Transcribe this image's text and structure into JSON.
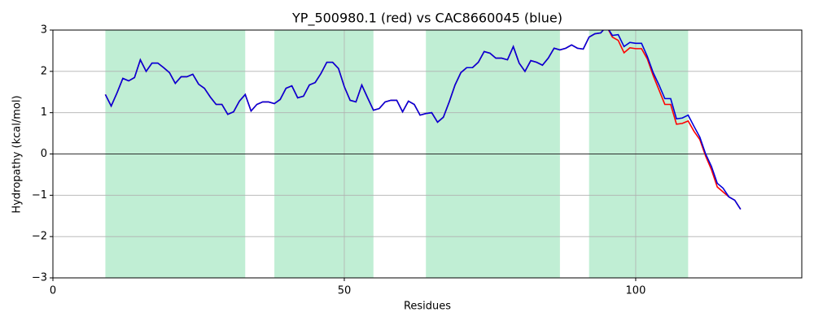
{
  "chart_data": {
    "type": "line",
    "title": "YP_500980.1 (red) vs CAC8660045 (blue)",
    "x_label": "Residues",
    "y_label": "Hydropathy (kcal/mol)",
    "xlim": [
      0,
      128.5
    ],
    "ylim": [
      -3,
      3
    ],
    "xticks": [
      0,
      50,
      100
    ],
    "yticks": [
      {
        "value": -3,
        "label": "−3"
      },
      {
        "value": -2,
        "label": "−2"
      },
      {
        "value": -1,
        "label": "−1"
      },
      0,
      1,
      2,
      3
    ],
    "grid": true,
    "hline": 0,
    "spans": [
      [
        9,
        33
      ],
      [
        38,
        55
      ],
      [
        64,
        87
      ],
      [
        92,
        109
      ]
    ],
    "span_color": "#c0eed4",
    "x": [
      9,
      10,
      11,
      12,
      13,
      14,
      15,
      16,
      17,
      18,
      19,
      20,
      21,
      22,
      23,
      24,
      25,
      26,
      27,
      28,
      29,
      30,
      31,
      32,
      33,
      34,
      35,
      36,
      37,
      38,
      39,
      40,
      41,
      42,
      43,
      44,
      45,
      46,
      47,
      48,
      49,
      50,
      51,
      52,
      53,
      54,
      55,
      56,
      57,
      58,
      59,
      60,
      61,
      62,
      63,
      64,
      65,
      66,
      67,
      68,
      69,
      70,
      71,
      72,
      73,
      74,
      75,
      76,
      77,
      78,
      79,
      80,
      81,
      82,
      83,
      84,
      85,
      86,
      87,
      88,
      89,
      90,
      91,
      92,
      93,
      94,
      95,
      96,
      97,
      98,
      99,
      100,
      101,
      102,
      103,
      104,
      105,
      106,
      107,
      108,
      109,
      110,
      111,
      112,
      113,
      114,
      115,
      116,
      117,
      118
    ],
    "series": [
      {
        "name": "YP_500980.1",
        "color": "#ff0000",
        "values": [
          1.44,
          1.16,
          1.48,
          1.83,
          1.77,
          1.85,
          2.28,
          2.0,
          2.2,
          2.2,
          2.09,
          1.97,
          1.71,
          1.87,
          1.87,
          1.93,
          1.69,
          1.59,
          1.38,
          1.2,
          1.2,
          0.96,
          1.02,
          1.28,
          1.44,
          1.04,
          1.2,
          1.26,
          1.26,
          1.22,
          1.32,
          1.59,
          1.65,
          1.36,
          1.4,
          1.67,
          1.73,
          1.95,
          2.22,
          2.22,
          2.07,
          1.63,
          1.3,
          1.26,
          1.67,
          1.36,
          1.06,
          1.1,
          1.26,
          1.3,
          1.3,
          1.02,
          1.28,
          1.2,
          0.94,
          0.98,
          1.0,
          0.77,
          0.89,
          1.26,
          1.67,
          1.97,
          2.09,
          2.09,
          2.22,
          2.48,
          2.44,
          2.32,
          2.32,
          2.28,
          2.6,
          2.2,
          2.0,
          2.26,
          2.22,
          2.15,
          2.32,
          2.56,
          2.52,
          2.56,
          2.64,
          2.56,
          2.54,
          2.83,
          2.91,
          2.93,
          3.09,
          2.83,
          2.75,
          2.45,
          2.57,
          2.55,
          2.55,
          2.3,
          1.9,
          1.55,
          1.2,
          1.2,
          0.72,
          0.74,
          0.8,
          0.55,
          0.35,
          -0.05,
          -0.38,
          -0.8,
          -0.92,
          -1.04,
          -1.12,
          -1.34
        ]
      },
      {
        "name": "CAC8660045",
        "color": "#0000dd",
        "values": [
          1.44,
          1.16,
          1.48,
          1.83,
          1.77,
          1.85,
          2.28,
          2.0,
          2.2,
          2.2,
          2.09,
          1.97,
          1.71,
          1.87,
          1.87,
          1.93,
          1.69,
          1.59,
          1.38,
          1.2,
          1.2,
          0.96,
          1.02,
          1.28,
          1.44,
          1.04,
          1.2,
          1.26,
          1.26,
          1.22,
          1.32,
          1.59,
          1.65,
          1.36,
          1.4,
          1.67,
          1.73,
          1.95,
          2.22,
          2.22,
          2.07,
          1.63,
          1.3,
          1.26,
          1.67,
          1.36,
          1.06,
          1.1,
          1.26,
          1.3,
          1.3,
          1.02,
          1.28,
          1.2,
          0.94,
          0.98,
          1.0,
          0.77,
          0.89,
          1.26,
          1.67,
          1.97,
          2.09,
          2.09,
          2.22,
          2.48,
          2.44,
          2.32,
          2.32,
          2.28,
          2.6,
          2.2,
          2.0,
          2.26,
          2.22,
          2.15,
          2.32,
          2.56,
          2.52,
          2.56,
          2.64,
          2.56,
          2.54,
          2.83,
          2.91,
          2.93,
          3.09,
          2.87,
          2.89,
          2.6,
          2.7,
          2.68,
          2.68,
          2.36,
          1.97,
          1.67,
          1.34,
          1.34,
          0.85,
          0.87,
          0.94,
          0.67,
          0.41,
          0.0,
          -0.3,
          -0.71,
          -0.83,
          -1.04,
          -1.12,
          -1.34
        ]
      }
    ]
  }
}
